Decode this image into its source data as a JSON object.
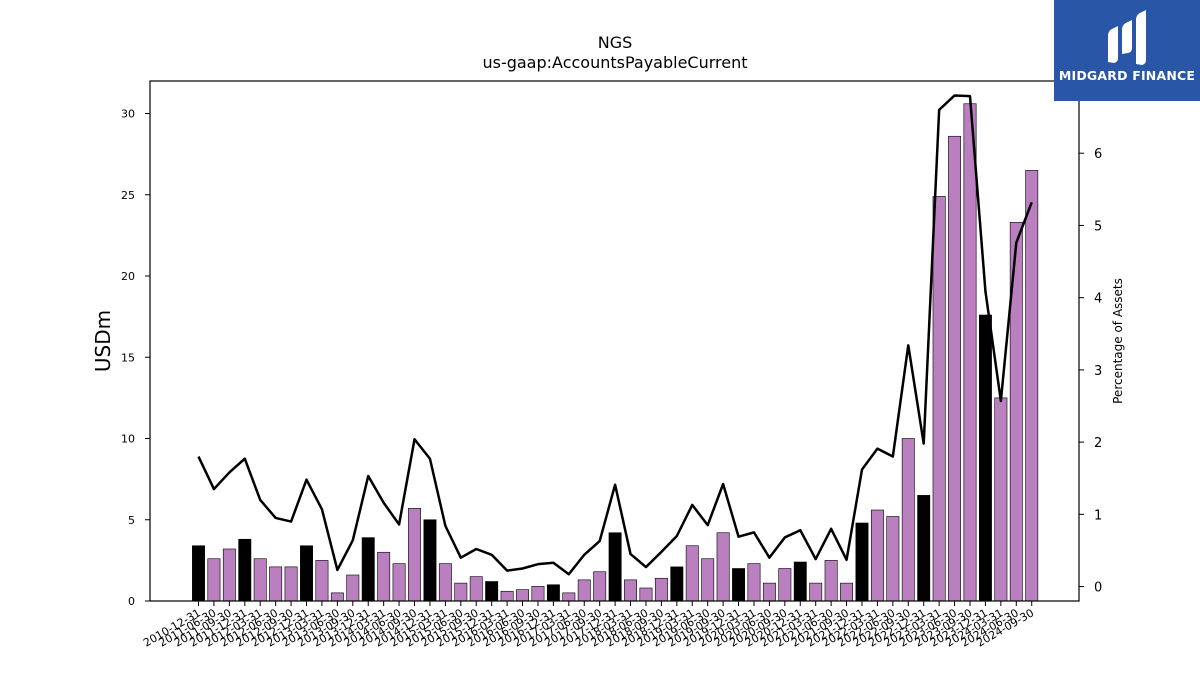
{
  "chart_data": {
    "type": "bar",
    "title": "NGS",
    "subtitle": "us-gaap:AccountsPayableCurrent",
    "ylabel": "USDm",
    "y2label": "Percentage of Assets",
    "ylim": [
      0,
      32
    ],
    "y2lim": [
      -0.2,
      7.0
    ],
    "yticks": [
      0,
      5,
      10,
      15,
      20,
      25,
      30
    ],
    "y2ticks": [
      0,
      1,
      2,
      3,
      4,
      5,
      6
    ],
    "colors": {
      "annual": "#000000",
      "quarterly": "#b97fbf",
      "line": "#000000"
    },
    "categories": [
      "2010-12-31",
      "2011-06-30",
      "2011-09-30",
      "2011-12-31",
      "2012-03-31",
      "2012-06-30",
      "2012-09-30",
      "2012-12-31",
      "2013-03-31",
      "2013-06-30",
      "2013-09-30",
      "2013-12-31",
      "2014-03-31",
      "2014-06-30",
      "2014-09-30",
      "2014-12-31",
      "2015-03-31",
      "2015-06-30",
      "2015-09-30",
      "2015-12-31",
      "2016-03-31",
      "2016-06-30",
      "2016-09-30",
      "2016-12-31",
      "2017-03-31",
      "2017-06-30",
      "2017-09-30",
      "2017-12-31",
      "2018-03-31",
      "2018-06-30",
      "2018-09-30",
      "2018-12-31",
      "2019-03-31",
      "2019-06-30",
      "2019-09-30",
      "2019-12-31",
      "2020-03-31",
      "2020-06-30",
      "2020-09-30",
      "2020-12-31",
      "2021-03-31",
      "2021-06-30",
      "2021-09-30",
      "2021-12-31",
      "2022-03-31",
      "2022-06-30",
      "2022-09-30",
      "2022-12-31",
      "2023-03-31",
      "2023-06-30",
      "2023-09-30",
      "2023-12-31",
      "2024-03-31",
      "2024-06-30",
      "2024-09-30"
    ],
    "series": [
      {
        "kind": "bar",
        "values": [
          3.4,
          2.6,
          3.2,
          3.8,
          2.6,
          2.1,
          2.1,
          3.4,
          2.5,
          0.5,
          1.6,
          3.9,
          3.0,
          2.3,
          5.7,
          5.0,
          2.3,
          1.1,
          1.5,
          1.2,
          0.6,
          0.7,
          0.9,
          1.0,
          0.5,
          1.3,
          1.8,
          4.2,
          1.3,
          0.8,
          1.4,
          2.1,
          3.4,
          2.6,
          4.2,
          2.0,
          2.3,
          1.1,
          2.0,
          2.4,
          1.1,
          2.5,
          1.1,
          4.8,
          5.6,
          5.2,
          10.0,
          6.5,
          24.9,
          28.6,
          30.6,
          17.6,
          12.5,
          23.3,
          26.5
        ],
        "annual": [
          true,
          false,
          false,
          true,
          false,
          false,
          false,
          true,
          false,
          false,
          false,
          true,
          false,
          false,
          false,
          true,
          false,
          false,
          false,
          true,
          false,
          false,
          false,
          true,
          false,
          false,
          false,
          true,
          false,
          false,
          false,
          true,
          false,
          false,
          false,
          true,
          false,
          false,
          false,
          true,
          false,
          false,
          false,
          true,
          false,
          false,
          false,
          true,
          false,
          false,
          false,
          true,
          false,
          false,
          false
        ]
      },
      {
        "kind": "line",
        "axis": "right",
        "values": [
          1.8,
          1.35,
          1.58,
          1.77,
          1.2,
          0.95,
          0.9,
          1.48,
          1.07,
          0.23,
          0.64,
          1.53,
          1.16,
          0.86,
          2.04,
          1.77,
          0.84,
          0.4,
          0.52,
          0.44,
          0.22,
          0.25,
          0.31,
          0.33,
          0.17,
          0.44,
          0.63,
          1.41,
          0.45,
          0.27,
          0.48,
          0.7,
          1.13,
          0.85,
          1.42,
          0.69,
          0.75,
          0.4,
          0.68,
          0.78,
          0.38,
          0.8,
          0.37,
          1.62,
          1.91,
          1.8,
          3.34,
          1.98,
          6.6,
          6.8,
          6.79,
          4.09,
          2.57,
          4.76,
          5.32
        ]
      }
    ]
  },
  "logo": {
    "text": "MIDGARD FINANCE",
    "icon": "midgard-logo-icon"
  }
}
